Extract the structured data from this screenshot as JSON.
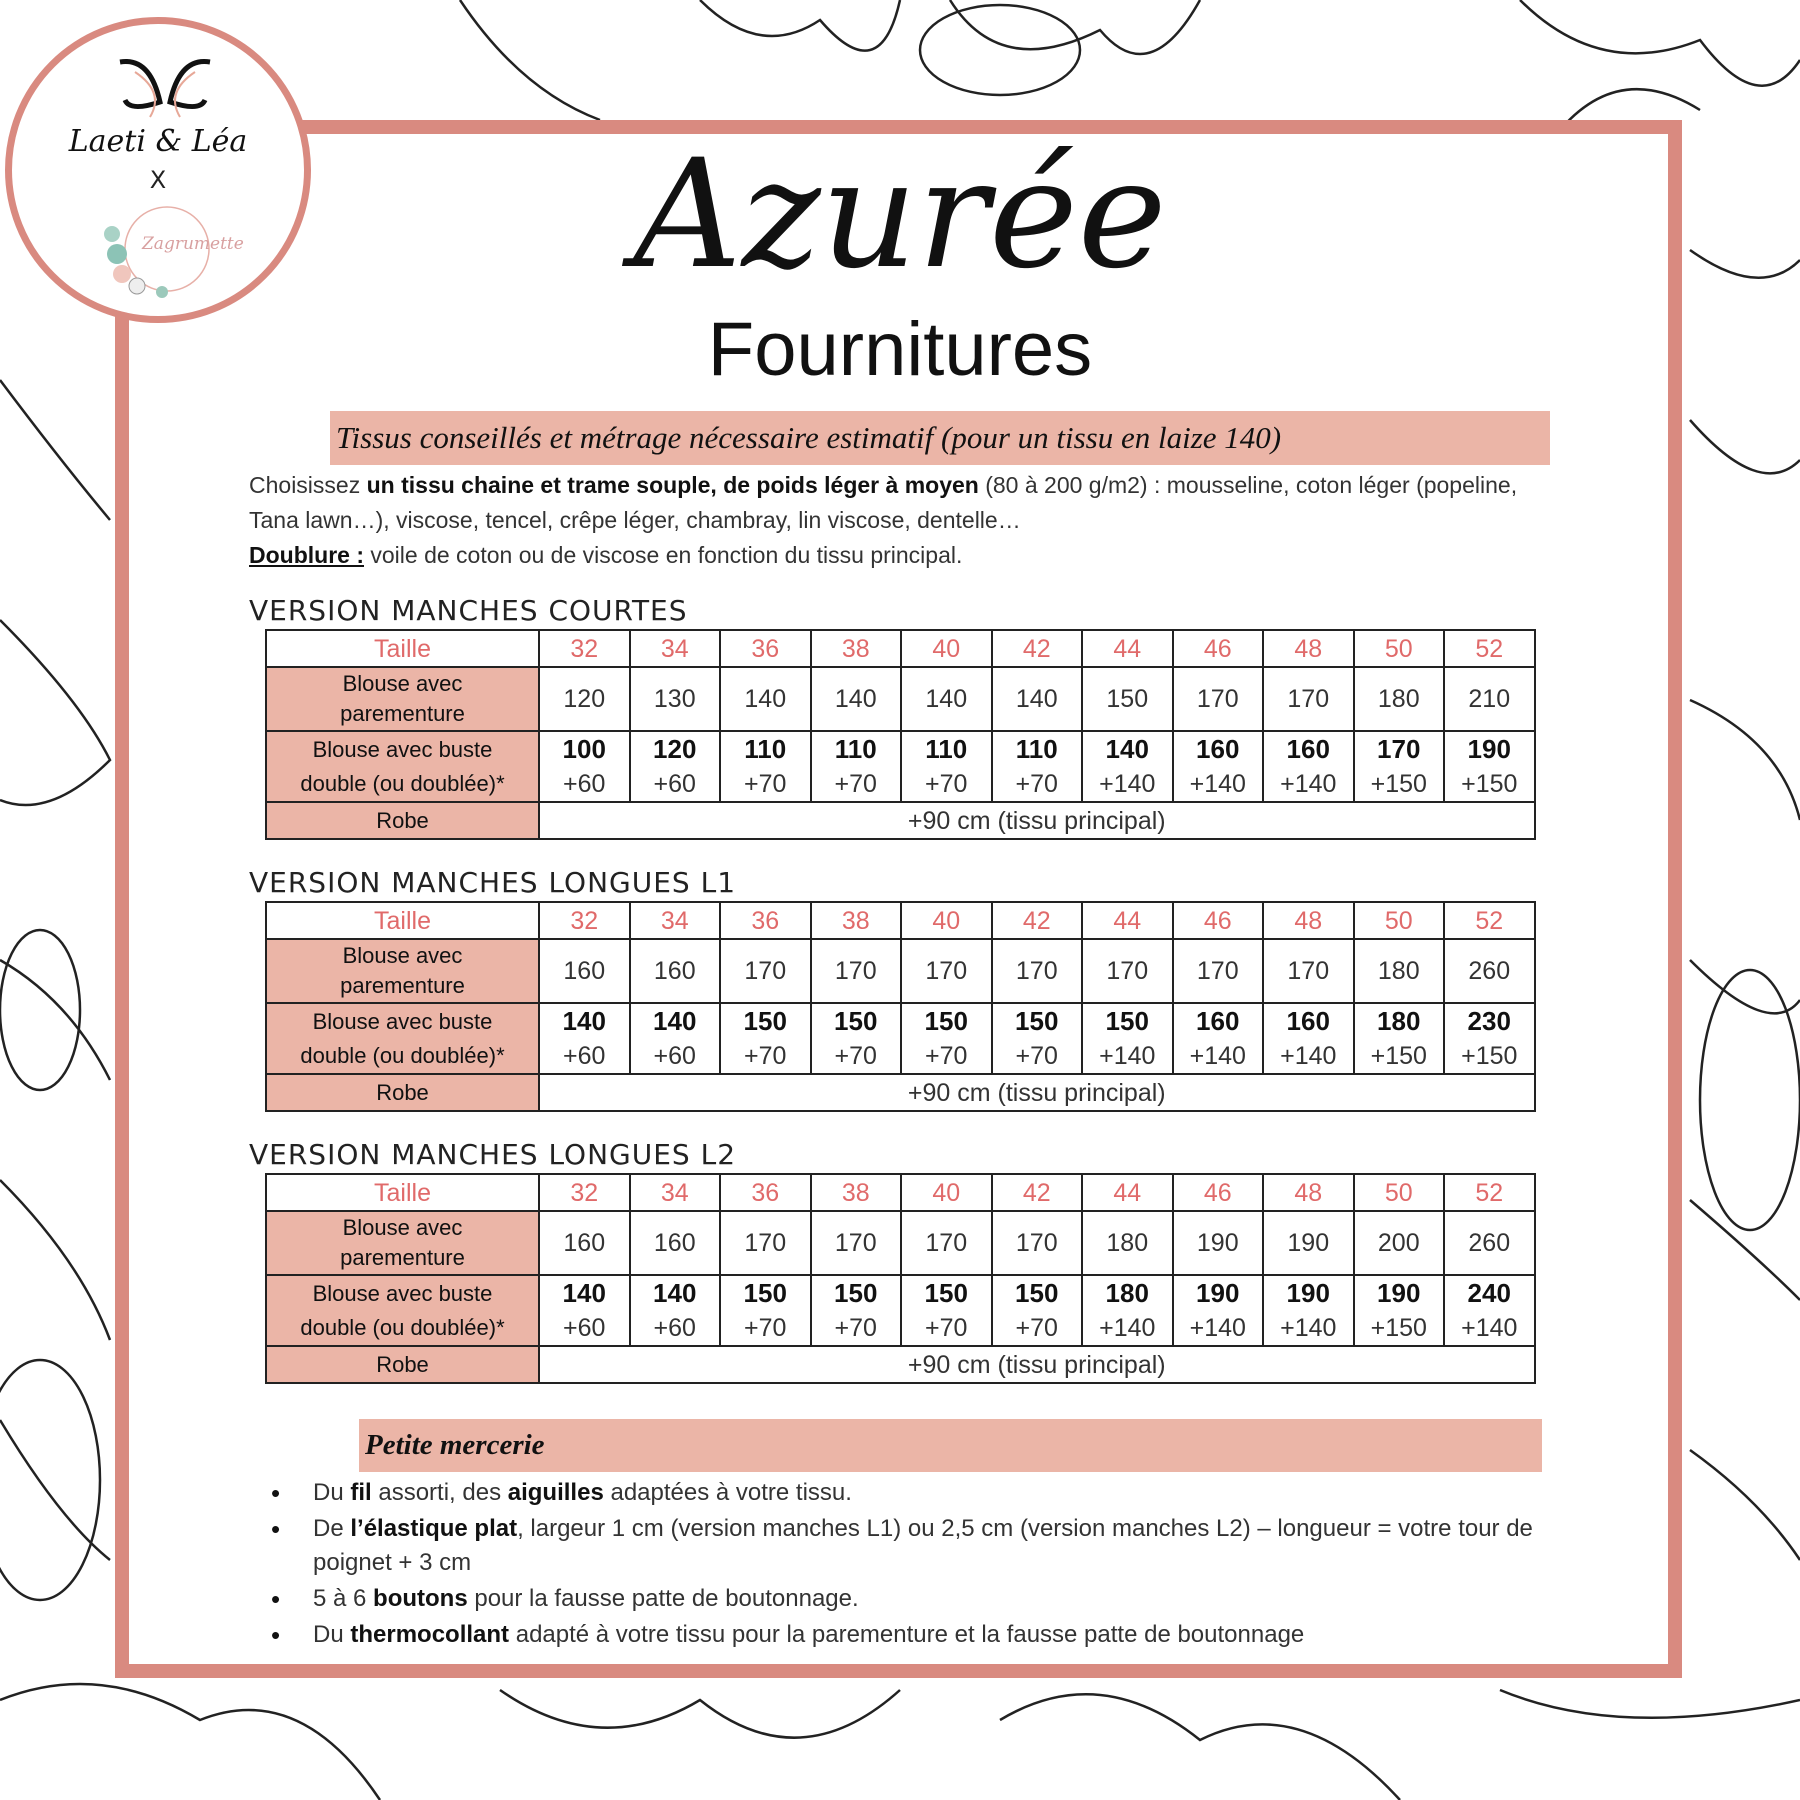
{
  "logo": {
    "brand": "Laeti & Léa",
    "x": "X",
    "partner": "Zagrumette"
  },
  "title": "Azurée",
  "subtitle": "Fournitures",
  "fabric": {
    "heading": "Tissus conseillés et métrage nécessaire estimatif (pour un tissu en laize 140)",
    "p1a": "Choisissez ",
    "p1b": "un tissu chaine et trame souple, de poids léger à moyen",
    "p1c": " (80 à 200 g/m2) : mousseline, coton léger (popeline, Tana lawn…), viscose, tencel, crêpe léger, chambray, lin viscose, dentelle…",
    "lining_label": "Doublure :",
    "lining_text": " voile de coton ou de viscose en fonction du tissu principal."
  },
  "row_labels": {
    "size": "Taille",
    "r1": [
      "Blouse avec",
      "parementure"
    ],
    "r2": [
      "Blouse avec buste",
      "double (ou doublée)*"
    ],
    "r3": "Robe"
  },
  "sizes": [
    "32",
    "34",
    "36",
    "38",
    "40",
    "42",
    "44",
    "46",
    "48",
    "50",
    "52"
  ],
  "tables": [
    {
      "title": "VERSION MANCHES COURTES",
      "facing": [
        "120",
        "130",
        "140",
        "140",
        "140",
        "140",
        "150",
        "170",
        "170",
        "180",
        "210"
      ],
      "double_main": [
        "100",
        "120",
        "110",
        "110",
        "110",
        "110",
        "140",
        "160",
        "160",
        "170",
        "190"
      ],
      "double_lining": [
        "+60",
        "+60",
        "+70",
        "+70",
        "+70",
        "+70",
        "+140",
        "+140",
        "+140",
        "+150",
        "+150"
      ],
      "dress": "+90 cm (tissu principal)"
    },
    {
      "title": "VERSION MANCHES LONGUES L1",
      "facing": [
        "160",
        "160",
        "170",
        "170",
        "170",
        "170",
        "170",
        "170",
        "170",
        "180",
        "260"
      ],
      "double_main": [
        "140",
        "140",
        "150",
        "150",
        "150",
        "150",
        "150",
        "160",
        "160",
        "180",
        "230"
      ],
      "double_lining": [
        "+60",
        "+60",
        "+70",
        "+70",
        "+70",
        "+70",
        "+140",
        "+140",
        "+140",
        "+150",
        "+150"
      ],
      "dress": "+90 cm (tissu principal)"
    },
    {
      "title": "VERSION MANCHES LONGUES L2",
      "facing": [
        "160",
        "160",
        "170",
        "170",
        "170",
        "170",
        "180",
        "190",
        "190",
        "200",
        "260"
      ],
      "double_main": [
        "140",
        "140",
        "150",
        "150",
        "150",
        "150",
        "180",
        "190",
        "190",
        "190",
        "240"
      ],
      "double_lining": [
        "+60",
        "+60",
        "+70",
        "+70",
        "+70",
        "+70",
        "+140",
        "+140",
        "+140",
        "+150",
        "+140"
      ],
      "dress": "+90 cm (tissu principal)"
    }
  ],
  "notions": {
    "heading": "Petite mercerie",
    "items": [
      [
        [
          "Du ",
          0
        ],
        [
          "fil",
          1
        ],
        [
          " assorti, des ",
          0
        ],
        [
          "aiguilles",
          1
        ],
        [
          " adaptées à votre tissu.",
          0
        ]
      ],
      [
        [
          "De ",
          0
        ],
        [
          "l’élastique plat",
          1
        ],
        [
          ", largeur 1 cm (version manches L1) ou 2,5 cm (version manches L2) – longueur = votre tour de poignet + 3 cm",
          0
        ]
      ],
      [
        [
          "5 à 6 ",
          0
        ],
        [
          "boutons",
          1
        ],
        [
          " pour la fausse patte de boutonnage.",
          0
        ]
      ],
      [
        [
          "Du ",
          0
        ],
        [
          "thermocollant",
          1
        ],
        [
          " adapté à votre tissu pour la parementure et la fausse patte de boutonnage",
          0
        ]
      ]
    ]
  },
  "colors": {
    "accent": "#d98a80",
    "banner": "#ebb5a7",
    "size_text": "#e06a6a"
  }
}
